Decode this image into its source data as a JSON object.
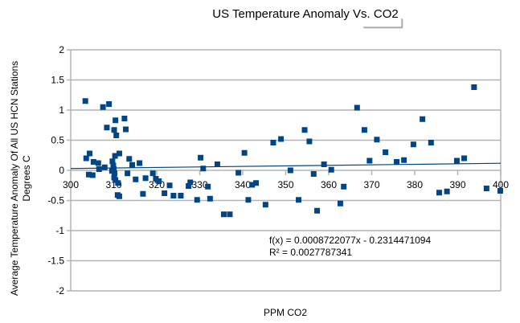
{
  "chart_data": {
    "type": "scatter",
    "title": "US Temperature Anomaly Vs. CO2",
    "xlabel": "PPM CO2",
    "ylabel_lines": [
      "Average Temperature Anomaly Of All US HCN Stations",
      "Degrees C"
    ],
    "xlim": [
      300,
      400
    ],
    "ylim": [
      -2,
      2
    ],
    "x_ticks": [
      "300",
      "310",
      "320",
      "330",
      "340",
      "350",
      "360",
      "370",
      "380",
      "390",
      "400"
    ],
    "y_ticks": [
      "2",
      "1.5",
      "1",
      "0.5",
      "0",
      "-0.5",
      "-1",
      "-1.5",
      "-2"
    ],
    "x_tick_values": [
      300,
      310,
      320,
      330,
      340,
      350,
      360,
      370,
      380,
      390,
      400
    ],
    "y_tick_values": [
      2,
      1.5,
      1,
      0.5,
      0,
      -0.5,
      -1,
      -1.5,
      -2
    ],
    "grid": true,
    "marker_color": "#004586",
    "trendline_color": "#004586",
    "series": [
      {
        "name": "Temperature Anomaly",
        "points": [
          [
            303.4,
            1.15
          ],
          [
            307.5,
            1.05
          ],
          [
            308.9,
            1.1
          ],
          [
            310.4,
            0.83
          ],
          [
            312.5,
            0.86
          ],
          [
            308.4,
            0.71
          ],
          [
            310.1,
            0.67
          ],
          [
            312.8,
            0.68
          ],
          [
            310.6,
            0.58
          ],
          [
            303.6,
            0.2
          ],
          [
            304.4,
            0.28
          ],
          [
            305.3,
            0.14
          ],
          [
            306.4,
            0.12
          ],
          [
            307.9,
            0.05
          ],
          [
            309.7,
            0.15
          ],
          [
            310.3,
            0.24
          ],
          [
            311.3,
            0.28
          ],
          [
            313.6,
            0.19
          ],
          [
            314.3,
            0.09
          ],
          [
            316.0,
            0.12
          ],
          [
            309.9,
            0.08
          ],
          [
            310.0,
            0.02
          ],
          [
            309.6,
            -0.01
          ],
          [
            310.2,
            -0.05
          ],
          [
            306.6,
            0.02
          ],
          [
            305.1,
            -0.08
          ],
          [
            304.2,
            -0.07
          ],
          [
            310.1,
            -0.12
          ],
          [
            310.4,
            -0.16
          ],
          [
            311.0,
            -0.21
          ],
          [
            313.2,
            -0.05
          ],
          [
            315.1,
            -0.15
          ],
          [
            317.4,
            -0.13
          ],
          [
            319.1,
            -0.05
          ],
          [
            319.8,
            -0.14
          ],
          [
            320.5,
            -0.18
          ],
          [
            310.9,
            -0.41
          ],
          [
            311.3,
            -0.43
          ],
          [
            316.8,
            -0.39
          ],
          [
            321.8,
            -0.38
          ],
          [
            323.0,
            -0.25
          ],
          [
            323.9,
            -0.42
          ],
          [
            325.6,
            -0.42
          ],
          [
            327.4,
            -0.26
          ],
          [
            327.8,
            -0.2
          ],
          [
            329.4,
            -0.49
          ],
          [
            330.2,
            0.21
          ],
          [
            330.8,
            0.03
          ],
          [
            331.9,
            -0.27
          ],
          [
            332.4,
            -0.47
          ],
          [
            334.1,
            0.1
          ],
          [
            335.6,
            -0.73
          ],
          [
            337.0,
            -0.73
          ],
          [
            339.0,
            -0.04
          ],
          [
            340.4,
            0.29
          ],
          [
            341.3,
            -0.49
          ],
          [
            342.2,
            -0.24
          ],
          [
            343.1,
            -0.21
          ],
          [
            345.3,
            -0.57
          ],
          [
            347.1,
            0.46
          ],
          [
            348.9,
            0.52
          ],
          [
            351.1,
            0.0
          ],
          [
            353.0,
            -0.49
          ],
          [
            354.4,
            0.67
          ],
          [
            355.5,
            0.48
          ],
          [
            356.5,
            -0.06
          ],
          [
            357.3,
            -0.67
          ],
          [
            358.9,
            0.1
          ],
          [
            360.6,
            0.01
          ],
          [
            362.7,
            -0.55
          ],
          [
            363.5,
            -0.27
          ],
          [
            366.6,
            1.04
          ],
          [
            368.3,
            0.67
          ],
          [
            369.5,
            0.16
          ],
          [
            371.2,
            0.51
          ],
          [
            373.2,
            0.3
          ],
          [
            375.8,
            0.14
          ],
          [
            377.5,
            0.17
          ],
          [
            379.7,
            0.43
          ],
          [
            381.8,
            0.85
          ],
          [
            383.8,
            0.46
          ],
          [
            385.7,
            -0.37
          ],
          [
            387.5,
            -0.35
          ],
          [
            389.8,
            0.16
          ],
          [
            391.5,
            0.2
          ],
          [
            393.8,
            1.38
          ],
          [
            396.7,
            -0.3
          ],
          [
            399.9,
            -0.34
          ]
        ]
      }
    ],
    "trendline": {
      "type": "linear",
      "slope": 0.0008722077,
      "intercept": -0.2314471094,
      "equation_label": "f(x) = 0.0008722077x - 0.2314471094",
      "r_squared_label": "R² = 0.0027787341"
    },
    "legend": "none"
  }
}
